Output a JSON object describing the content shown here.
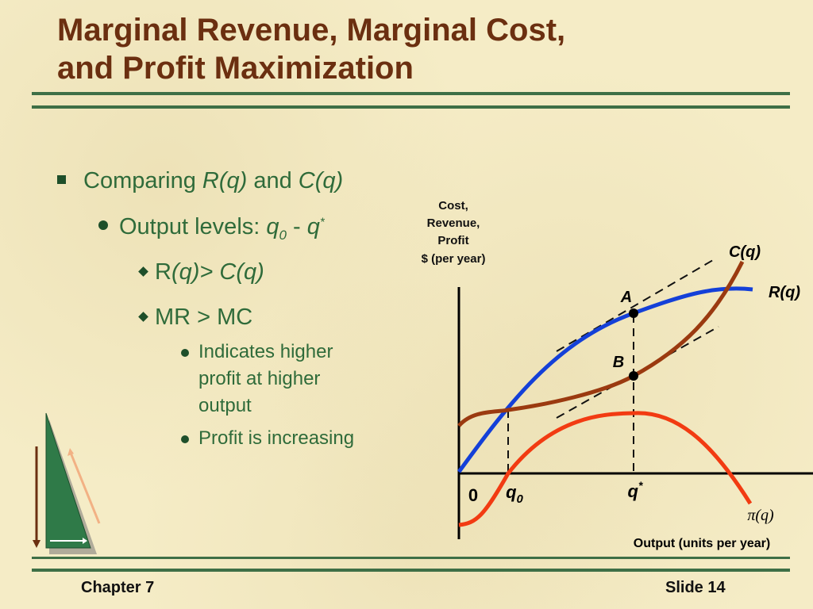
{
  "title": {
    "line1": "Marginal Revenue, Marginal Cost,",
    "line2": "and Profit Maximization"
  },
  "bullets": {
    "b1": {
      "prefix": "Comparing ",
      "r": "R(q)",
      "and": " and ",
      "c": "C(q)"
    },
    "b2": {
      "prefix": "Output levels: ",
      "q": "q",
      "sub0": "0",
      "dash": " - ",
      "qstar": "q",
      "star": "*"
    },
    "b3a": {
      "r": "R",
      "rest": "(q)> C(q)"
    },
    "b3b": {
      "text": "MR > MC"
    },
    "b4a": {
      "line1": "Indicates higher",
      "line2": "profit at higher",
      "line3": "output"
    },
    "b4b": {
      "text": "Profit is increasing"
    }
  },
  "graph": {
    "y_axis_title": [
      "Cost,",
      "Revenue,",
      "Profit",
      "$ (per year)"
    ],
    "x_axis_title": "Output (units per year)",
    "origin_label": "0",
    "q0_label": "q",
    "q0_sub": "0",
    "qstar_label": "q",
    "qstar_sup": "*",
    "curve_labels": {
      "cost": "C(q)",
      "revenue": "R(q)",
      "profit": "π(q)"
    },
    "point_labels": {
      "a": "A",
      "b": "B"
    },
    "colors": {
      "revenue": "#1440d8",
      "cost": "#9b3a10",
      "profit": "#f23b12",
      "tangent": "#111111"
    }
  },
  "footer": {
    "chapter": "Chapter 7",
    "slide": "Slide 14"
  }
}
